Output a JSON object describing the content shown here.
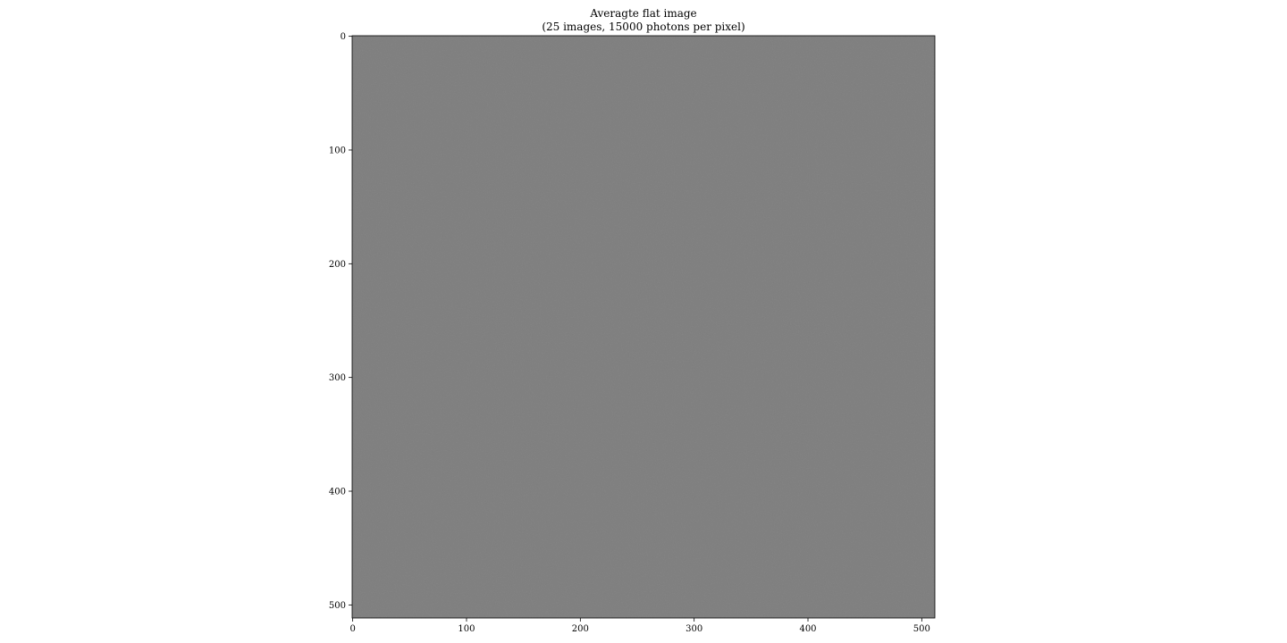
{
  "chart_data": {
    "type": "heatmap",
    "title": "Averagte flat image",
    "subtitle": "(25 images, 15000 photons per pixel)",
    "xlabel": "",
    "ylabel": "",
    "x_range": [
      0,
      511
    ],
    "y_range": [
      511,
      0
    ],
    "y_inverted": true,
    "colormap": "gray",
    "grid": false,
    "x_ticks": [
      0,
      100,
      200,
      300,
      400,
      500
    ],
    "y_ticks": [
      0,
      100,
      200,
      300,
      400,
      500
    ],
    "image_description": "uniform mid-gray noise field",
    "colors": {
      "image_base": "#7e7e7e",
      "axis": "#000000"
    }
  }
}
